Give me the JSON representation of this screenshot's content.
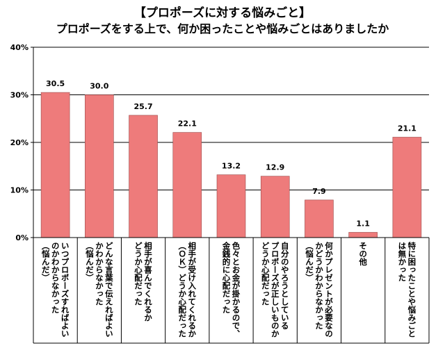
{
  "chart_data": {
    "type": "bar",
    "title": "【プロポーズに対する悩みごと】",
    "subtitle": "プロポーズをする上で、何か困ったことや悩みごとはありましたか",
    "ylim": [
      0,
      40
    ],
    "yticks": [
      "0%",
      "10%",
      "20%",
      "30%",
      "40%"
    ],
    "ytick_values": [
      0,
      10,
      20,
      30,
      40
    ],
    "grid": true,
    "bar_color": "#ee7b7b",
    "categories": [
      [
        "いつプロポーズすればよい",
        "のかわからなかった",
        "（悩んだ）"
      ],
      [
        "どんな言葉で伝えればよい",
        "かわからなかった",
        "（悩んだ）"
      ],
      [
        "相手が喜んでくれるか",
        "どうか心配だった"
      ],
      [
        "相手が受け入れてくれるか",
        "（ＯＫ）どうか心配だった"
      ],
      [
        "色々とお金が掛かるので、",
        "金銭的に心配だった"
      ],
      [
        "自分のやろうとしている",
        "プロポーズが正しいものか",
        "どうか心配だった"
      ],
      [
        "何かプレゼントが必要なの",
        "かどうかわからなかった",
        "（悩んだ）"
      ],
      [
        "その他"
      ],
      [
        "特に困ったことや悩みごと",
        "は無かった"
      ]
    ],
    "values": [
      30.5,
      30.0,
      25.7,
      22.1,
      13.2,
      12.9,
      7.9,
      1.1,
      21.1
    ],
    "value_labels": [
      "30.5",
      "30.0",
      "25.7",
      "22.1",
      "13.2",
      "12.9",
      "7.9",
      "1.1",
      "21.1"
    ]
  }
}
